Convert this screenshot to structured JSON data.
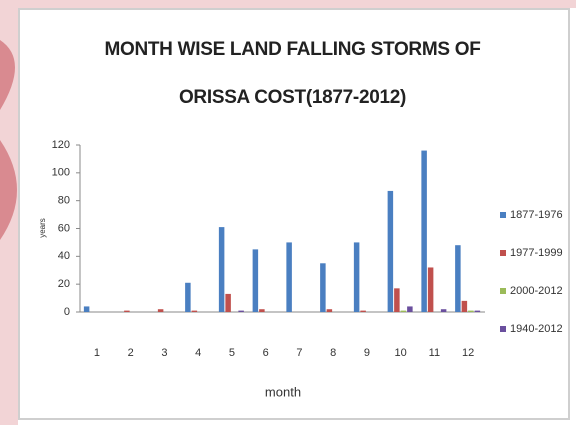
{
  "chart_data": {
    "type": "bar",
    "title": "MONTH WISE LAND FALLING STORMS OF ORISSA COST(1877-2012)",
    "y_label": "years",
    "x_label": "month",
    "categories": [
      "1",
      "2",
      "3",
      "4",
      "5",
      "6",
      "7",
      "8",
      "9",
      "10",
      "11",
      "12"
    ],
    "series": [
      {
        "name": "1877-1976",
        "color": "#4a7fc1",
        "values": [
          4,
          0,
          0,
          21,
          61,
          45,
          50,
          35,
          50,
          87,
          116,
          48
        ]
      },
      {
        "name": "1977-1999",
        "color": "#c0504d",
        "values": [
          0,
          1,
          2,
          1,
          13,
          2,
          0,
          2,
          1,
          17,
          32,
          8
        ]
      },
      {
        "name": "2000-2012",
        "color": "#9bbb59",
        "values": [
          0,
          0,
          0,
          0,
          0,
          0,
          0,
          0,
          0,
          1,
          0,
          1
        ]
      },
      {
        "name": "1940-2012",
        "color": "#6a4f9e",
        "values": [
          0,
          0,
          0,
          0,
          1,
          0,
          0,
          0,
          0,
          4,
          2,
          1
        ]
      }
    ],
    "ylim": [
      0,
      120
    ],
    "yticks": [
      0,
      20,
      40,
      60,
      80,
      100,
      120
    ],
    "legend": "right"
  }
}
